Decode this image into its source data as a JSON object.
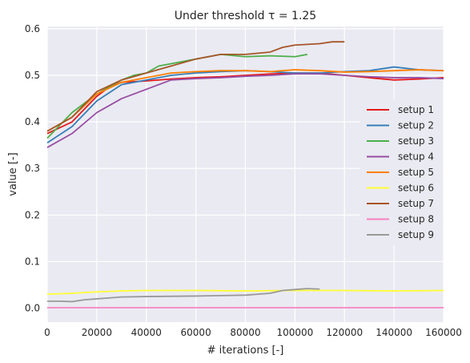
{
  "chart_data": {
    "type": "line",
    "title": "Under threshold τ = 1.25",
    "xlabel": "# iterations [-]",
    "ylabel": "value [-]",
    "xlim": [
      0,
      160000
    ],
    "ylim": [
      -0.03,
      0.605
    ],
    "xticks": [
      0,
      20000,
      40000,
      60000,
      80000,
      100000,
      120000,
      140000,
      160000
    ],
    "xtick_labels": [
      "0",
      "20000",
      "40000",
      "60000",
      "80000",
      "100000",
      "120000",
      "140000",
      "160000"
    ],
    "yticks": [
      0.0,
      0.1,
      0.2,
      0.3,
      0.4,
      0.5,
      0.6
    ],
    "ytick_labels": [
      "0.0",
      "0.1",
      "0.2",
      "0.3",
      "0.4",
      "0.5",
      "0.6"
    ],
    "grid": true,
    "legend_position": "center-right",
    "background": "#EAEAF2",
    "series": [
      {
        "name": "setup 1",
        "color": "#E41A1C",
        "x": [
          0,
          10000,
          20000,
          25000,
          30000,
          40000,
          50000,
          60000,
          70000,
          80000,
          90000,
          100000,
          110000,
          120000,
          130000,
          140000,
          150000,
          160000
        ],
        "y": [
          0.375,
          0.4,
          0.455,
          0.475,
          0.485,
          0.488,
          0.492,
          0.495,
          0.497,
          0.5,
          0.503,
          0.505,
          0.505,
          0.5,
          0.495,
          0.49,
          0.492,
          0.495
        ]
      },
      {
        "name": "setup 2",
        "color": "#377EB8",
        "x": [
          0,
          10000,
          20000,
          30000,
          40000,
          50000,
          60000,
          70000,
          80000,
          90000,
          100000,
          110000,
          120000,
          130000,
          140000,
          150000,
          160000
        ],
        "y": [
          0.355,
          0.39,
          0.445,
          0.48,
          0.49,
          0.5,
          0.505,
          0.508,
          0.51,
          0.508,
          0.505,
          0.505,
          0.508,
          0.51,
          0.518,
          0.512,
          0.51
        ]
      },
      {
        "name": "setup 3",
        "color": "#4DAF4A",
        "x": [
          0,
          10000,
          20000,
          30000,
          35000,
          40000,
          45000,
          50000,
          60000,
          70000,
          80000,
          90000,
          100000,
          105000
        ],
        "y": [
          0.365,
          0.42,
          0.46,
          0.49,
          0.5,
          0.505,
          0.52,
          0.525,
          0.535,
          0.545,
          0.54,
          0.542,
          0.54,
          0.545
        ]
      },
      {
        "name": "setup 4",
        "color": "#984EA3",
        "x": [
          0,
          10000,
          20000,
          30000,
          40000,
          50000,
          60000,
          70000,
          80000,
          90000,
          100000,
          110000,
          120000,
          130000,
          140000,
          150000,
          160000
        ],
        "y": [
          0.345,
          0.375,
          0.42,
          0.45,
          0.47,
          0.49,
          0.493,
          0.495,
          0.498,
          0.5,
          0.503,
          0.503,
          0.5,
          0.497,
          0.495,
          0.495,
          0.493
        ]
      },
      {
        "name": "setup 5",
        "color": "#FF7F00",
        "x": [
          0,
          10000,
          20000,
          30000,
          40000,
          50000,
          60000,
          70000,
          80000,
          90000,
          100000,
          110000,
          120000,
          130000,
          140000,
          150000,
          160000
        ],
        "y": [
          0.38,
          0.41,
          0.46,
          0.485,
          0.495,
          0.505,
          0.508,
          0.51,
          0.51,
          0.508,
          0.512,
          0.51,
          0.507,
          0.508,
          0.51,
          0.512,
          0.51
        ]
      },
      {
        "name": "setup 6",
        "color": "#FFFF33",
        "x": [
          0,
          10000,
          20000,
          30000,
          40000,
          60000,
          80000,
          100000,
          120000,
          140000,
          160000
        ],
        "y": [
          0.03,
          0.032,
          0.035,
          0.037,
          0.038,
          0.038,
          0.037,
          0.038,
          0.038,
          0.037,
          0.038
        ]
      },
      {
        "name": "setup 7",
        "color": "#A65628",
        "x": [
          0,
          10000,
          20000,
          30000,
          40000,
          50000,
          60000,
          70000,
          80000,
          90000,
          95000,
          100000,
          110000,
          115000,
          120000
        ],
        "y": [
          0.38,
          0.41,
          0.465,
          0.49,
          0.505,
          0.52,
          0.535,
          0.545,
          0.545,
          0.55,
          0.56,
          0.565,
          0.568,
          0.572,
          0.572
        ]
      },
      {
        "name": "setup 8",
        "color": "#F781BF",
        "x": [
          0,
          40000,
          80000,
          120000,
          160000
        ],
        "y": [
          0.001,
          0.001,
          0.001,
          0.001,
          0.001
        ]
      },
      {
        "name": "setup 9",
        "color": "#999999",
        "x": [
          0,
          5000,
          10000,
          15000,
          20000,
          30000,
          40000,
          60000,
          80000,
          90000,
          95000,
          100000,
          105000,
          110000
        ],
        "y": [
          0.015,
          0.015,
          0.014,
          0.018,
          0.02,
          0.024,
          0.025,
          0.026,
          0.028,
          0.032,
          0.038,
          0.04,
          0.042,
          0.041
        ]
      }
    ]
  }
}
